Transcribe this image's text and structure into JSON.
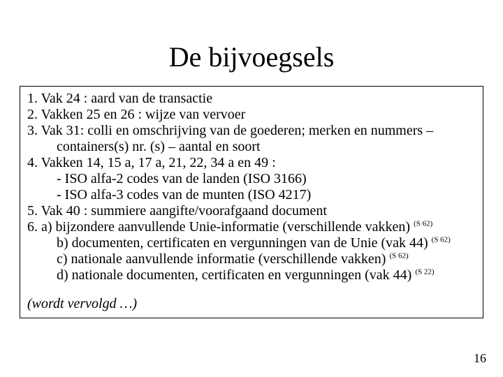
{
  "title": "De bijvoegsels",
  "lines": {
    "l1": "1. Vak 24 : aard van de transactie",
    "l2": "2. Vakken 25 en 26 : wijze van vervoer",
    "l3": "3. Vak 31: colli en omschrijving van de goederen; merken en nummers –",
    "l3b": "containers(s) nr. (s) – aantal en soort",
    "l4": "4. Vakken 14, 15 a, 17 a, 21, 22, 34 a en 49 :",
    "l4a": "-  ISO alfa-2 codes van de landen (ISO 3166)",
    "l4b": "-  ISO alfa-3 codes van de munten (ISO 4217)",
    "l5": "5. Vak 40 : summiere aangifte/voorafgaand document",
    "l6a": "6. a) bijzondere aanvullende Unie-informatie (verschillende vakken) ",
    "l6b": "b) documenten, certificaten en vergunningen van de Unie (vak 44) ",
    "l6c": "c) nationale aanvullende informatie (verschillende vakken) ",
    "l6d": "d) nationale documenten, certificaten en vergunningen (vak 44)  ",
    "s62": "(S 62)",
    "s22": "(S 22)",
    "continued": "(wordt vervolgd …)"
  },
  "page_number": "16",
  "style": {
    "background_color": "#ffffff",
    "text_color": "#000000",
    "border_color": "#000000",
    "title_fontsize": 40,
    "body_fontsize": 20,
    "sup_fontsize": 11,
    "font_family": "Times New Roman"
  }
}
